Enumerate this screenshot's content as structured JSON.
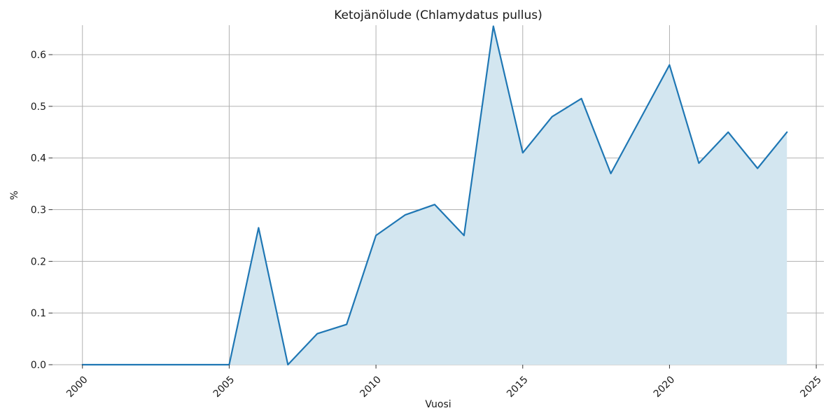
{
  "chart_data": {
    "type": "area",
    "title": "Ketojänölude (Chlamydatus pullus)",
    "xlabel": "Vuosi",
    "ylabel": "%",
    "x": [
      2000,
      2001,
      2002,
      2003,
      2004,
      2005,
      2006,
      2007,
      2008,
      2009,
      2010,
      2011,
      2012,
      2013,
      2014,
      2015,
      2016,
      2017,
      2018,
      2019,
      2020,
      2021,
      2022,
      2023,
      2024
    ],
    "values": [
      0.0,
      0.0,
      0.0,
      0.0,
      0.0,
      0.0,
      0.265,
      0.0,
      0.06,
      0.078,
      0.25,
      0.29,
      0.31,
      0.25,
      0.655,
      0.41,
      0.48,
      0.515,
      0.37,
      0.475,
      0.58,
      0.39,
      0.45,
      0.38,
      0.45
    ],
    "x_ticks": [
      2000,
      2005,
      2010,
      2015,
      2020,
      2025
    ],
    "x_tick_labels": [
      "2000",
      "2005",
      "2010",
      "2015",
      "2020",
      "2025"
    ],
    "y_ticks": [
      0.0,
      0.1,
      0.2,
      0.3,
      0.4,
      0.5,
      0.6
    ],
    "y_tick_labels": [
      "0.0",
      "0.1",
      "0.2",
      "0.3",
      "0.4",
      "0.5",
      "0.6"
    ],
    "xlim": [
      1998.98,
      2025.26
    ],
    "ylim": [
      0,
      0.657
    ],
    "grid": true,
    "legend": "none",
    "colors": {
      "line": "#1f77b4",
      "fill": "#d3e6f0",
      "grid": "#b0b0b0",
      "tick": "#333333",
      "text": "#1a1a1a"
    }
  }
}
